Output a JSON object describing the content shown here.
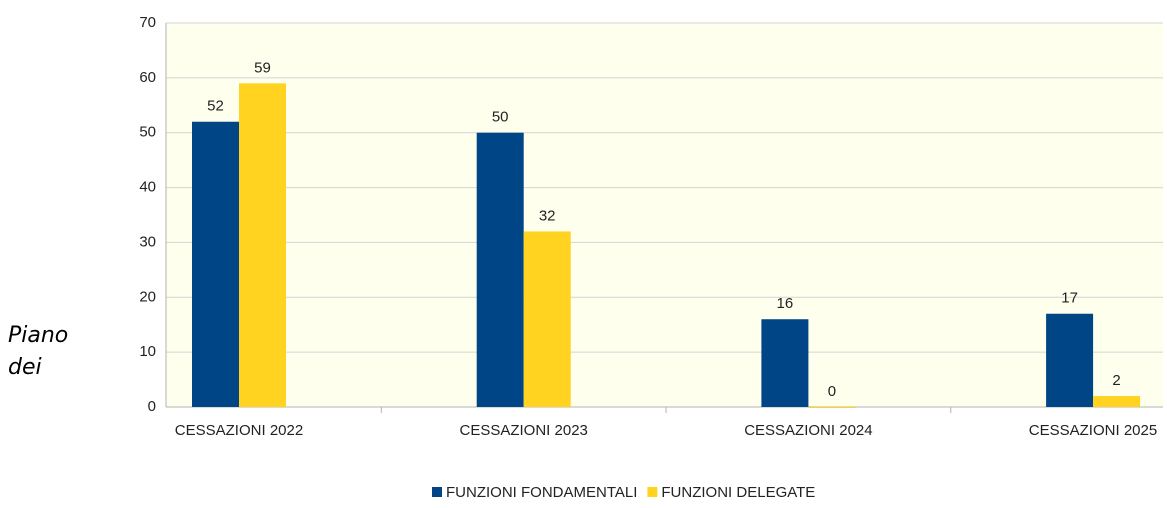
{
  "side_text": [
    "Piano",
    "dei"
  ],
  "chart_data": {
    "type": "bar",
    "categories": [
      "CESSAZIONI 2022",
      "CESSAZIONI 2023",
      "CESSAZIONI 2024",
      "CESSAZIONI 2025"
    ],
    "series": [
      {
        "name": "FUNZIONI FONDAMENTALI",
        "color": "#004586",
        "values": [
          52,
          50,
          16,
          17
        ]
      },
      {
        "name": "FUNZIONI DELEGATE",
        "color": "#ffd320",
        "values": [
          59,
          32,
          0,
          2
        ]
      }
    ],
    "ylim": [
      0,
      70
    ],
    "yticks": [
      0,
      10,
      20,
      30,
      40,
      50,
      60,
      70
    ],
    "grid": true,
    "legend": "bottom"
  }
}
